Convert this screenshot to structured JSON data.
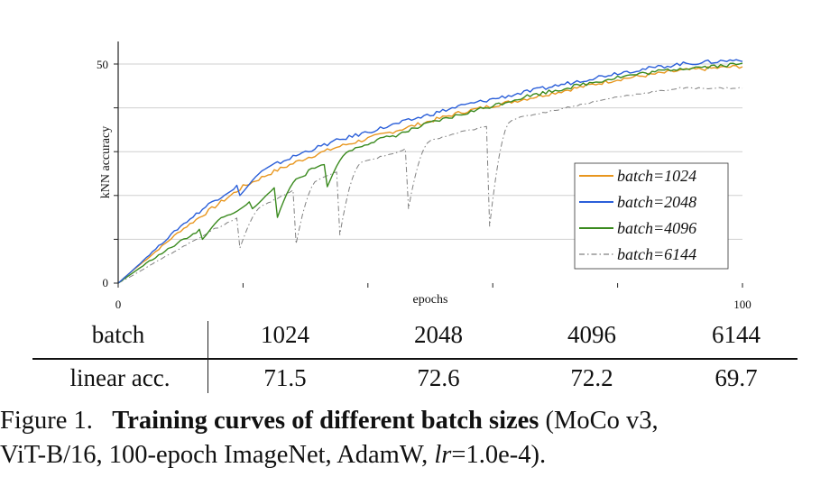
{
  "chart_data": {
    "type": "line",
    "xlabel": "epochs",
    "ylabel": "kNN accuracy",
    "xlim": [
      0,
      100
    ],
    "ylim": [
      0,
      50
    ],
    "x_ticks": [
      "0",
      "100"
    ],
    "y_ticks": [
      "0",
      "50"
    ],
    "grid": true,
    "legend_position": "lower-right",
    "x": [
      0,
      2,
      5,
      10,
      15,
      20,
      25,
      30,
      35,
      40,
      45,
      50,
      55,
      60,
      65,
      70,
      75,
      80,
      85,
      90,
      95,
      100
    ],
    "series": [
      {
        "name": "batch=1024",
        "color": "#e8961e",
        "dash": "solid",
        "values": [
          0,
          2.5,
          6,
          12,
          17,
          22,
          25.5,
          28.5,
          31,
          33,
          35,
          37,
          39,
          40.5,
          42,
          43.5,
          45,
          46.5,
          47.5,
          48.5,
          49,
          49.5
        ]
      },
      {
        "name": "batch=2048",
        "color": "#2b5fd9",
        "dash": "solid",
        "values": [
          0,
          2.5,
          6.5,
          13,
          18.5,
          23,
          27,
          30,
          32.5,
          34.5,
          36.5,
          38.5,
          40.5,
          42,
          43.5,
          45,
          46.5,
          48,
          49,
          50,
          50.5,
          51
        ]
      },
      {
        "name": "batch=4096",
        "color": "#3a8a1e",
        "dash": "solid",
        "values": [
          0,
          2,
          5,
          9.5,
          14,
          17.5,
          21.5,
          25,
          29,
          32,
          34,
          36.5,
          38.5,
          40.5,
          42.5,
          44,
          45.5,
          47,
          48,
          49,
          49.5,
          50
        ]
      },
      {
        "name": "batch=6144",
        "color": "#808080",
        "dash": "dashdot",
        "values": [
          0,
          1.5,
          4,
          8,
          12,
          15.5,
          19,
          22.5,
          25.5,
          28,
          30,
          32.5,
          34.5,
          36,
          38,
          39.5,
          41,
          42.5,
          43.5,
          44.5,
          44.5,
          44.5
        ]
      }
    ],
    "dips": {
      "batch=2048": [
        [
          19,
          20
        ]
      ],
      "batch=4096": [
        [
          13,
          10
        ],
        [
          17,
          15.5
        ],
        [
          21,
          17
        ],
        [
          25,
          15
        ],
        [
          33,
          22
        ]
      ],
      "batch=6144": [
        [
          19,
          8
        ],
        [
          28,
          9
        ],
        [
          35,
          11
        ],
        [
          46,
          17
        ],
        [
          59,
          13
        ]
      ]
    }
  },
  "table": {
    "row_header_1": "batch",
    "values_1": [
      "1024",
      "2048",
      "4096",
      "6144"
    ],
    "row_header_2": "linear acc.",
    "values_2": [
      "71.5",
      "72.6",
      "72.2",
      "69.7"
    ]
  },
  "caption": {
    "label": "Figure 1.",
    "bold_text": "Training curves of different batch sizes",
    "text_1": "(MoCo v3,",
    "text_2": "ViT-B/16, 100-epoch ImageNet, AdamW,",
    "lr_symbol": "lr",
    "lr_value": "=1.0e-4)."
  }
}
